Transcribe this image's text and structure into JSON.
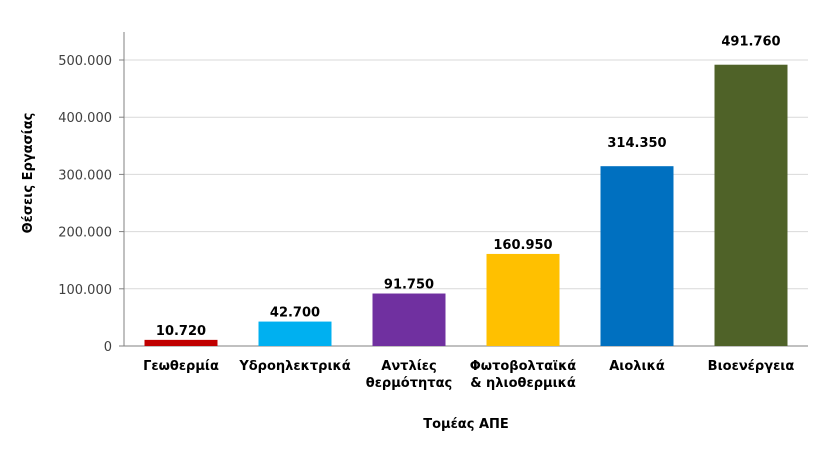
{
  "chart_data": {
    "type": "bar",
    "title": "",
    "xlabel": "Τομέας ΑΠΕ",
    "ylabel": "Θέσεις Εργασίας",
    "categories": [
      [
        "Γεωθερμία"
      ],
      [
        "Υδροηλεκτρικά"
      ],
      [
        "Αντλίες",
        "θερμότητας"
      ],
      [
        "Φωτοβολταϊκά",
        "& ηλιοθερμικά"
      ],
      [
        "Αιολικά"
      ],
      [
        "Βιοενέργεια"
      ]
    ],
    "values": [
      10720,
      42700,
      91750,
      160950,
      314350,
      491760
    ],
    "value_labels": [
      "10.720",
      "42.700",
      "91.750",
      "160.950",
      "314.350",
      "491.760"
    ],
    "colors": [
      "#C00000",
      "#00B0F0",
      "#7030A0",
      "#FFC000",
      "#0070C0",
      "#4F6228"
    ],
    "ylim": [
      0,
      500000
    ],
    "yticks": [
      0,
      100000,
      200000,
      300000,
      400000,
      500000
    ],
    "ytick_labels": [
      "0",
      "100.000",
      "200.000",
      "300.000",
      "400.000",
      "500.000"
    ],
    "grid": true,
    "legend": "none"
  }
}
